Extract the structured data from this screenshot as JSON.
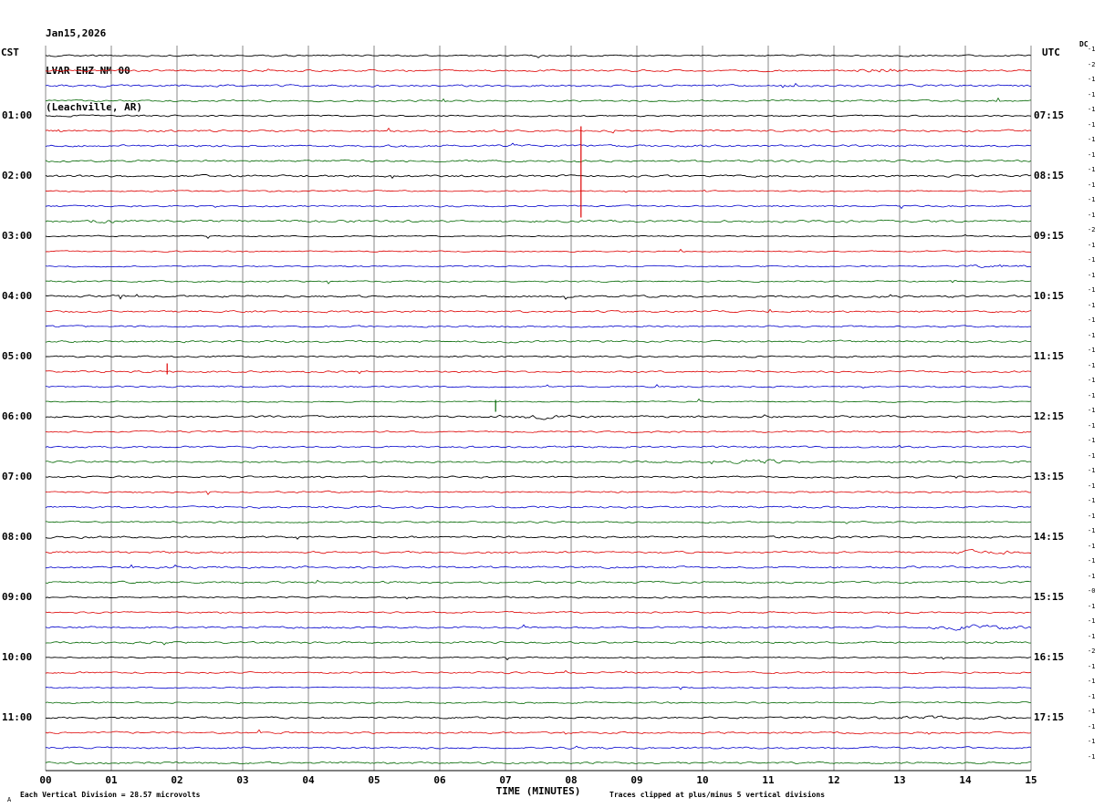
{
  "header": {
    "date": "Jan15,2026",
    "station": "LVAR EHZ NM 00",
    "location": "(Leachville, AR)"
  },
  "axes": {
    "left_title": "CST",
    "right_title": "UTC",
    "dc_title": "DC",
    "xlabel": "TIME (MINUTES)"
  },
  "footer": {
    "scale_note": "Each Vertical Division =   28.57 microvolts",
    "clip_note": "Traces clipped at plus/minus 5 vertical divisions",
    "corner_mark": "A"
  },
  "chart_data": {
    "type": "line",
    "subtype": "helicorder-seismogram",
    "title": "LVAR EHZ NM 00",
    "x_ticks": [
      "00",
      "01",
      "02",
      "03",
      "04",
      "05",
      "06",
      "07",
      "08",
      "09",
      "10",
      "11",
      "12",
      "13",
      "14",
      "15"
    ],
    "x_range_minutes": [
      0,
      15
    ],
    "minutes_per_row": 15,
    "rows": 48,
    "row_colors_cycle": [
      "#000000",
      "#dd0000",
      "#0000cc",
      "#006600"
    ],
    "grid": "vertical-minute-lines",
    "grid_color": "#8a8a8a",
    "left_axis_labels": [
      {
        "row": 4,
        "label": "01:00"
      },
      {
        "row": 8,
        "label": "02:00"
      },
      {
        "row": 12,
        "label": "03:00"
      },
      {
        "row": 16,
        "label": "04:00"
      },
      {
        "row": 20,
        "label": "05:00"
      },
      {
        "row": 24,
        "label": "06:00"
      },
      {
        "row": 28,
        "label": "07:00"
      },
      {
        "row": 32,
        "label": "08:00"
      },
      {
        "row": 36,
        "label": "09:00"
      },
      {
        "row": 40,
        "label": "10:00"
      },
      {
        "row": 44,
        "label": "11:00"
      }
    ],
    "right_axis_labels": [
      {
        "row": 4,
        "label": "07:15"
      },
      {
        "row": 8,
        "label": "08:15"
      },
      {
        "row": 12,
        "label": "09:15"
      },
      {
        "row": 16,
        "label": "10:15"
      },
      {
        "row": 20,
        "label": "11:15"
      },
      {
        "row": 24,
        "label": "12:15"
      },
      {
        "row": 28,
        "label": "13:15"
      },
      {
        "row": 32,
        "label": "14:15"
      },
      {
        "row": 36,
        "label": "15:15"
      },
      {
        "row": 40,
        "label": "16:15"
      },
      {
        "row": 44,
        "label": "17:15"
      }
    ],
    "dc_values": [
      "-1",
      "-2",
      "-1",
      "-1",
      "-1",
      "-1",
      "-1",
      "-1",
      "-1",
      "-1",
      "-1",
      "-1",
      "-2",
      "-1",
      "-1",
      "-1",
      "-1",
      "-1",
      "-1",
      "-1",
      "-1",
      "-1",
      "-1",
      "-1",
      "-1",
      "-1",
      "-1",
      "-1",
      "-1",
      "-1",
      "-1",
      "-1",
      "-1",
      "-1",
      "-1",
      "-1",
      "-0",
      "-1",
      "-1",
      "-1",
      "-2",
      "-1",
      "-1",
      "-1",
      "-1",
      "-1",
      "-1",
      "-1"
    ],
    "noise_seed": 20260115,
    "events": [
      {
        "type": "spike",
        "row": 5,
        "minute": 8.15,
        "up": 5,
        "down": 95
      },
      {
        "type": "spike",
        "row": 21,
        "minute": 1.85,
        "up": 9,
        "down": 3
      },
      {
        "type": "spike",
        "row": 23,
        "minute": 6.85,
        "up": 2,
        "down": 11
      },
      {
        "type": "burst",
        "row": 1,
        "minute": 12.7,
        "span": 0.5,
        "amp": 3
      },
      {
        "type": "burst",
        "row": 11,
        "minute": 0.9,
        "span": 0.4,
        "amp": 2.5
      },
      {
        "type": "burst",
        "row": 14,
        "minute": 14.6,
        "span": 1.0,
        "amp": 3
      },
      {
        "type": "burst",
        "row": 24,
        "minute": 7.5,
        "span": 1.0,
        "amp": 2.2
      },
      {
        "type": "burst",
        "row": 27,
        "minute": 10.8,
        "span": 0.9,
        "amp": 2.5
      },
      {
        "type": "burst",
        "row": 33,
        "minute": 14.3,
        "span": 0.8,
        "amp": 2.5
      },
      {
        "type": "burst",
        "row": 38,
        "minute": 14.2,
        "span": 0.9,
        "amp": 3
      },
      {
        "type": "burst",
        "row": 44,
        "minute": 13.5,
        "span": 1.5,
        "amp": 2
      }
    ]
  }
}
